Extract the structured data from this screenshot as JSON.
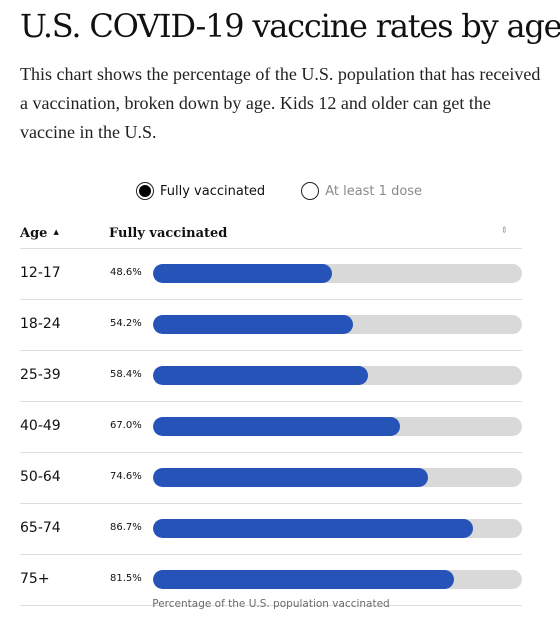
{
  "title": "U.S. COVID-19 vaccine rates by age",
  "subtitle": "This chart shows the percentage of the U.S. population that has received a vaccination, broken down by age. Kids 12 and older can get the vaccine in the U.S.",
  "toggles": {
    "selected": "Fully vaccinated",
    "other": "At least 1 dose"
  },
  "table": {
    "col_age": "Age",
    "col_value": "Fully vaccinated",
    "sort_glyph": "▲",
    "sort_toggle_glyph": "⇕"
  },
  "footer": "Percentage of the U.S. population vaccinated",
  "colors": {
    "bar": "#2553b8",
    "track": "#d9d9d9"
  },
  "chart_data": {
    "type": "bar",
    "orientation": "horizontal",
    "categories": [
      "12-17",
      "18-24",
      "25-39",
      "40-49",
      "50-64",
      "65-74",
      "75+"
    ],
    "values": [
      48.6,
      54.2,
      58.4,
      67.0,
      74.6,
      86.7,
      81.5
    ],
    "labels": [
      "48.6%",
      "54.2%",
      "58.4%",
      "67.0%",
      "74.6%",
      "86.7%",
      "81.5%"
    ],
    "series": [
      {
        "name": "Fully vaccinated",
        "values": [
          48.6,
          54.2,
          58.4,
          67.0,
          74.6,
          86.7,
          81.5
        ]
      }
    ],
    "xlabel": "Percentage of the U.S. population vaccinated",
    "xlim": [
      0,
      100
    ]
  }
}
